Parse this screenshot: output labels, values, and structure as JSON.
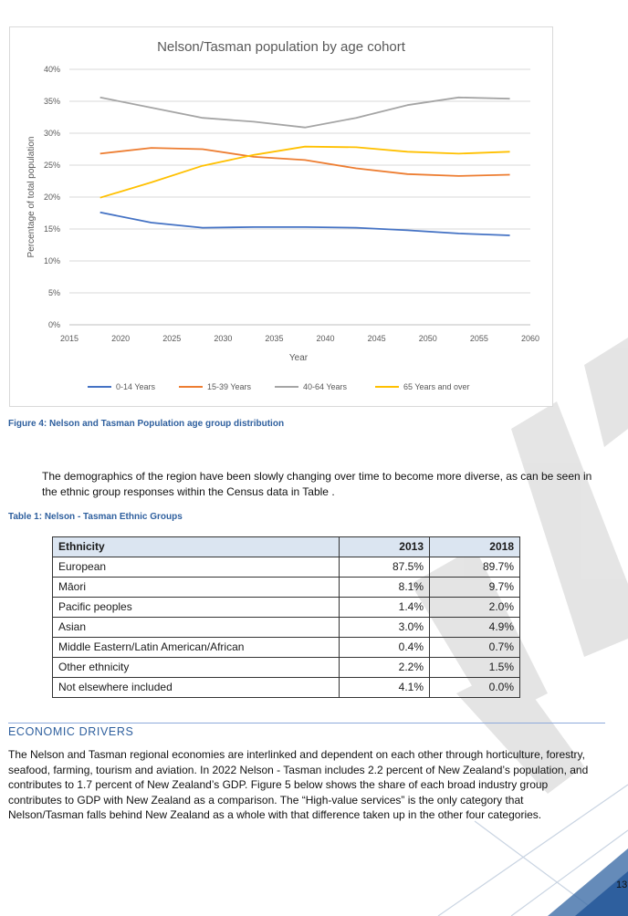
{
  "chart": {
    "title": "Nelson/Tasman population by age cohort",
    "xlabel": "Year",
    "ylabel": "Percentage of total population"
  },
  "chart_data": {
    "type": "line",
    "title": "Nelson/Tasman population by age cohort",
    "xlabel": "Year",
    "ylabel": "Percentage of total population",
    "xlim": [
      2015,
      2060
    ],
    "ylim": [
      0,
      40
    ],
    "x_ticks": [
      "2015",
      "2020",
      "2025",
      "2030",
      "2035",
      "2040",
      "2045",
      "2050",
      "2055",
      "2060"
    ],
    "y_ticks": [
      "0%",
      "5%",
      "10%",
      "15%",
      "20%",
      "25%",
      "30%",
      "35%",
      "40%"
    ],
    "grid": true,
    "legend_position": "bottom",
    "x": [
      2018,
      2023,
      2028,
      2033,
      2038,
      2043,
      2048,
      2053,
      2058
    ],
    "series": [
      {
        "name": "0-14 Years",
        "color": "#4472c4",
        "values": [
          17.6,
          16.0,
          15.2,
          15.3,
          15.3,
          15.2,
          14.8,
          14.3,
          14.0
        ]
      },
      {
        "name": "15-39 Years",
        "color": "#ed7d31",
        "values": [
          26.8,
          27.7,
          27.5,
          26.3,
          25.8,
          24.5,
          23.6,
          23.3,
          23.5
        ]
      },
      {
        "name": "40-64 Years",
        "color": "#a5a5a5",
        "values": [
          35.6,
          34.0,
          32.4,
          31.8,
          30.9,
          32.4,
          34.4,
          35.6,
          35.4
        ]
      },
      {
        "name": "65 Years and over",
        "color": "#ffc000",
        "values": [
          19.9,
          22.3,
          24.9,
          26.6,
          27.9,
          27.8,
          27.1,
          26.8,
          27.1
        ]
      }
    ]
  },
  "figure_caption": "Figure 4: Nelson and Tasman Population age group distribution",
  "paragraph1": "The demographics of the region have been slowly changing over time to become more diverse, as can be seen in the ethnic group responses within the Census data in Table .",
  "table_caption": "Table 1: Nelson - Tasman Ethnic Groups",
  "table": {
    "headers": [
      "Ethnicity",
      "2013",
      "2018"
    ],
    "rows": [
      [
        "European",
        "87.5%",
        "89.7%"
      ],
      [
        "Māori",
        "8.1%",
        "9.7%"
      ],
      [
        "Pacific peoples",
        "1.4%",
        "2.0%"
      ],
      [
        "Asian",
        "3.0%",
        "4.9%"
      ],
      [
        "Middle Eastern/Latin American/African",
        "0.4%",
        "0.7%"
      ],
      [
        "Other ethnicity",
        "2.2%",
        "1.5%"
      ],
      [
        "Not elsewhere included",
        "4.1%",
        "0.0%"
      ]
    ]
  },
  "section_heading": "ECONOMIC DRIVERS",
  "paragraph2": "The Nelson and Tasman regional economies are interlinked and dependent on each other through horticulture, forestry, seafood, farming, tourism and aviation.  In 2022 Nelson - Tasman includes 2.2 percent of New Zealand’s population, and contributes to 1.7 percent of New Zealand’s GDP.  Figure 5 below shows the share of each broad industry group contributes to GDP with New Zealand as a comparison. The “High-value services” is the only category that Nelson/Tasman falls behind New Zealand as a whole with that difference taken up in the other four categories.",
  "page_number": "13",
  "colors": {
    "accent": "#2e5f9e",
    "table_header_bg": "#dbe5f1"
  }
}
